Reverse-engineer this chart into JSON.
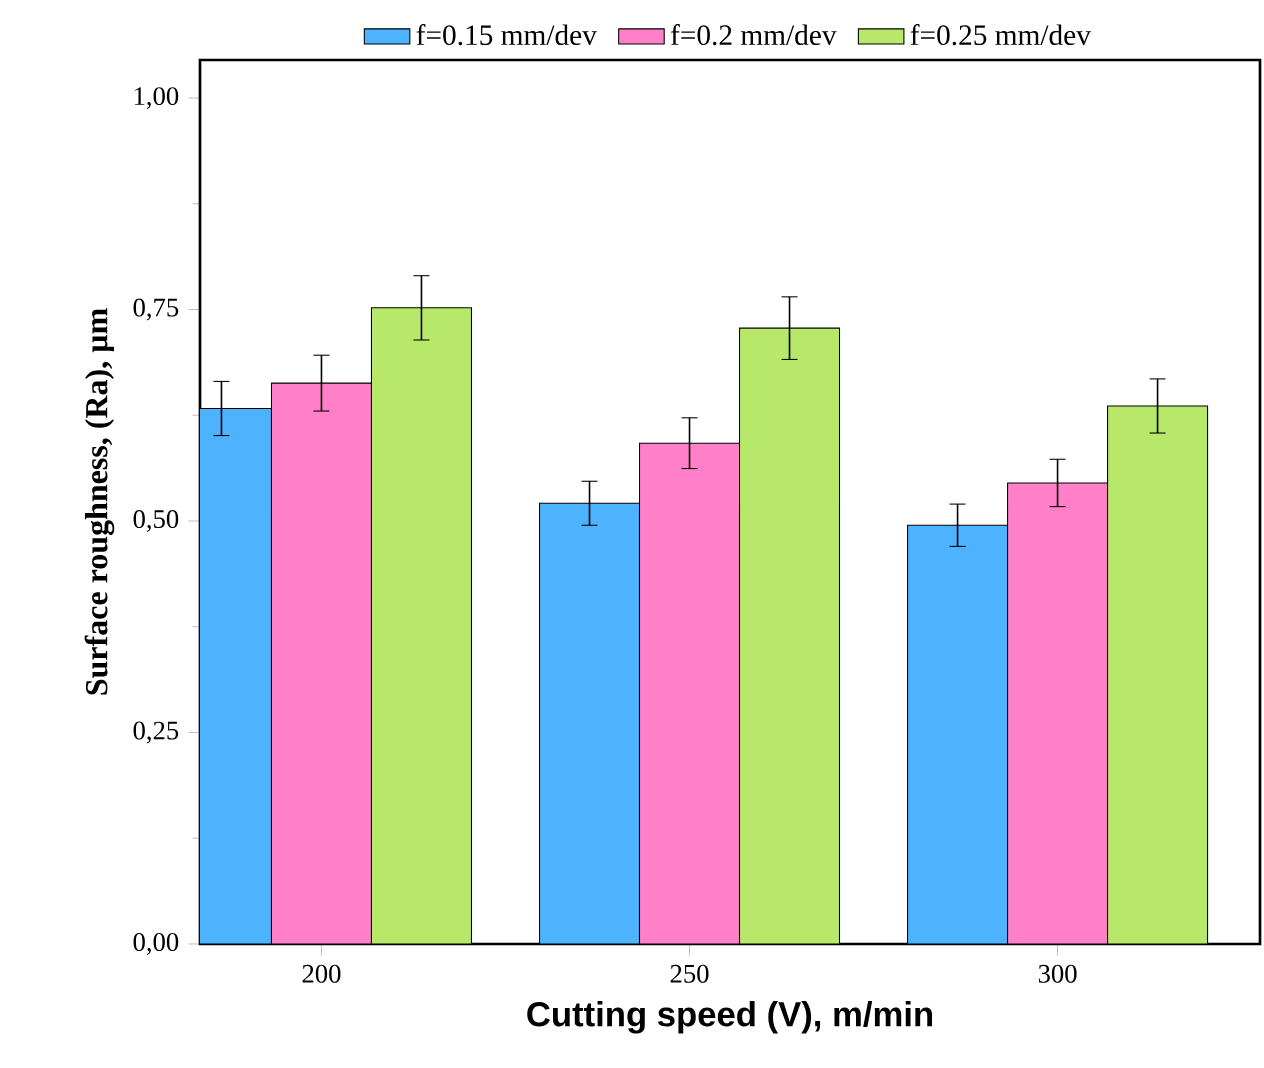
{
  "chart_data": {
    "type": "bar",
    "xlabel": "Cutting speed (V), m/min",
    "ylabel": "Surface roughness, (Ra), µm",
    "categories": [
      "200",
      "250",
      "300"
    ],
    "series": [
      {
        "name": "f=0.15 mm/dev",
        "color": "#4db3ff",
        "values": [
          0.633,
          0.521,
          0.495
        ],
        "errors": [
          0.032,
          0.026,
          0.025
        ]
      },
      {
        "name": "f=0.2 mm/dev",
        "color": "#ff80c8",
        "values": [
          0.663,
          0.592,
          0.545
        ],
        "errors": [
          0.033,
          0.03,
          0.028
        ]
      },
      {
        "name": "f=0.25 mm/dev",
        "color": "#b7e86a",
        "values": [
          0.752,
          0.728,
          0.636
        ],
        "errors": [
          0.038,
          0.037,
          0.032
        ]
      }
    ],
    "ylim": [
      0,
      1.045
    ],
    "yticks": [
      {
        "value": 0,
        "label": "0,00"
      },
      {
        "value": 0.25,
        "label": "0,25"
      },
      {
        "value": 0.5,
        "label": "0,50"
      },
      {
        "value": 0.75,
        "label": "0,75"
      },
      {
        "value": 1,
        "label": "1,00"
      }
    ],
    "grid": false,
    "legend": "top"
  }
}
